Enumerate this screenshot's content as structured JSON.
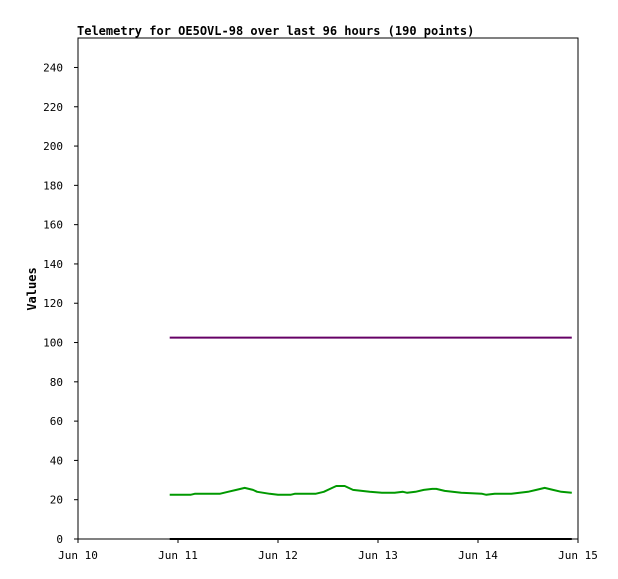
{
  "chart_data": {
    "type": "line",
    "title": "Telemetry for OE5OVL-98 over last 96 hours (190 points)",
    "xlabel": "",
    "ylabel": "Values",
    "x_unit": "hours from Jun 10 00:00",
    "xlim": [
      0,
      120
    ],
    "ylim": [
      0,
      255
    ],
    "x_ticks": [
      {
        "value": 0,
        "label": "Jun 10"
      },
      {
        "value": 24,
        "label": "Jun 11"
      },
      {
        "value": 48,
        "label": "Jun 12"
      },
      {
        "value": 72,
        "label": "Jun 13"
      },
      {
        "value": 96,
        "label": "Jun 14"
      },
      {
        "value": 120,
        "label": "Jun 15"
      }
    ],
    "y_ticks": [
      0,
      20,
      40,
      60,
      80,
      100,
      120,
      140,
      160,
      180,
      200,
      220,
      240
    ],
    "grid": false,
    "series": [
      {
        "color": "#660066",
        "x": [
          22,
          118.5
        ],
        "y": [
          102.5,
          102.5
        ]
      },
      {
        "color": "#009900",
        "x": [
          22,
          27,
          28,
          34,
          36,
          38,
          40,
          42,
          43,
          46,
          48,
          51,
          52,
          55,
          57,
          59,
          61,
          62,
          64,
          66,
          70,
          73,
          76,
          78,
          79,
          81,
          83,
          85,
          86,
          88,
          92,
          97,
          98,
          100,
          104,
          108,
          110,
          112,
          114,
          116,
          118.5
        ],
        "y": [
          22.5,
          22.5,
          23,
          23,
          24,
          25,
          26,
          25,
          24,
          23,
          22.5,
          22.5,
          23,
          23,
          23,
          24,
          26,
          27,
          27,
          25,
          24,
          23.5,
          23.5,
          24,
          23.5,
          24,
          25,
          25.5,
          25.5,
          24.5,
          23.5,
          23,
          22.5,
          23,
          23,
          24,
          25,
          26,
          25,
          24,
          23.5
        ]
      },
      {
        "color": "#000000",
        "x": [
          22,
          118.5
        ],
        "y": [
          0,
          0
        ]
      }
    ]
  }
}
